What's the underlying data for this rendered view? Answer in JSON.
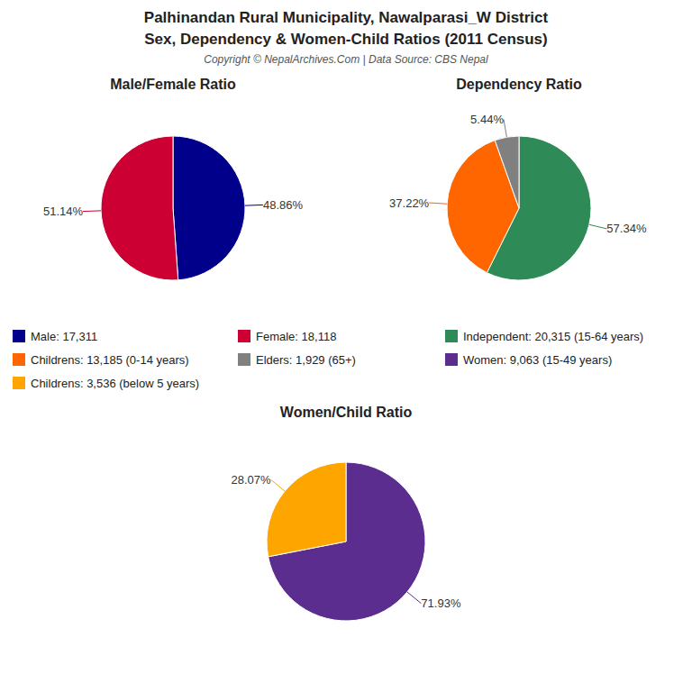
{
  "title": "Palhinandan Rural Municipality, Nawalparasi_W District",
  "subtitle": "Sex, Dependency & Women-Child Ratios (2011 Census)",
  "annotations": [
    "Copyright © NepalArchives.Com | Data Source: CBS Nepal"
  ],
  "chart_data": [
    {
      "type": "pie",
      "title": "Male/Female Ratio",
      "categories": [
        "Male: 17,311",
        "Female: 18,118"
      ],
      "values": [
        48.86,
        51.14
      ],
      "value_labels": [
        "48.86%",
        "51.14%"
      ],
      "data_labels": true,
      "colors": [
        "#00008B",
        "#CC0033"
      ]
    },
    {
      "type": "pie",
      "title": "Dependency Ratio",
      "categories": [
        "Independent: 20,315 (15-64 years)",
        "Childrens: 13,185 (0-14 years)",
        "Elders: 1,929 (65+)"
      ],
      "values": [
        57.34,
        37.22,
        5.44
      ],
      "value_labels": [
        "57.34%",
        "37.22%",
        "5.44%"
      ],
      "data_labels": true,
      "colors": [
        "#2E8B57",
        "#FF6600",
        "#808080"
      ]
    },
    {
      "type": "pie",
      "title": "Women/Child Ratio",
      "categories": [
        "Women: 9,063 (15-49 years)",
        "Childrens: 3,536 (below 5 years)"
      ],
      "values": [
        71.93,
        28.07
      ],
      "value_labels": [
        "71.93%",
        "28.07%"
      ],
      "data_labels": true,
      "colors": [
        "#5B2D8E",
        "#FFA500"
      ]
    }
  ]
}
